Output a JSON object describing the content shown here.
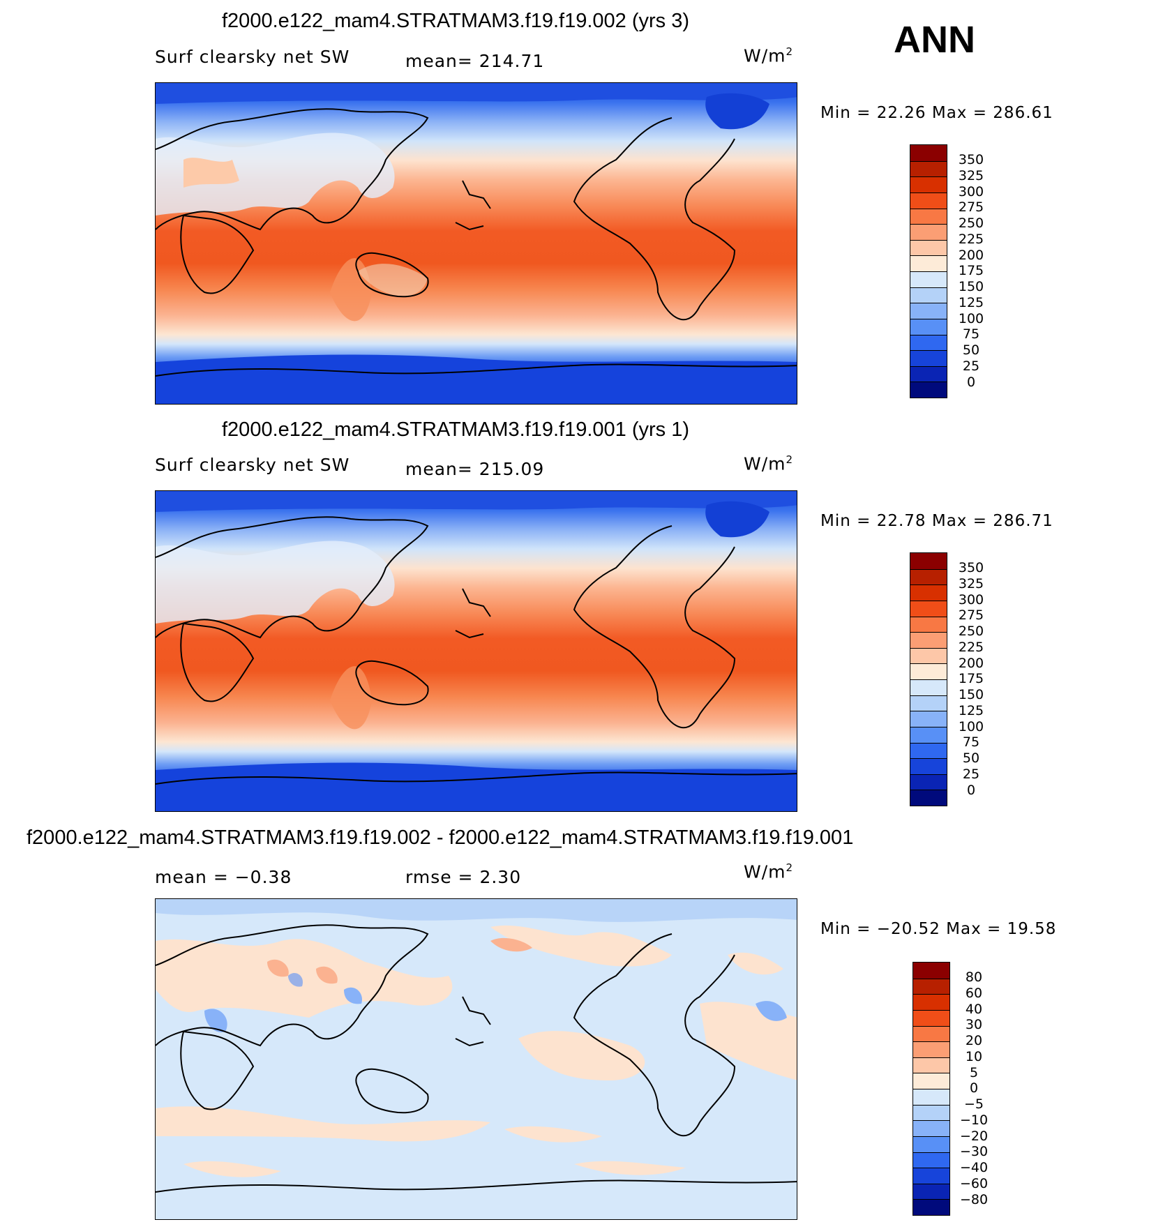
{
  "season_label": "ANN",
  "units_base": "W/m",
  "units_exp": "2",
  "panels": [
    {
      "title": "f2000.e122_mam4.STRATMAM3.f19.f19.002 (yrs 3)",
      "variable": "Surf clearsky net SW",
      "stat1": "mean= 214.71",
      "stat2": "",
      "minmax": "Min =   22.26 Max  = 286.61",
      "colorbar": {
        "labels": [
          "350",
          "325",
          "300",
          "275",
          "250",
          "225",
          "200",
          "175",
          "150",
          "125",
          "100",
          "75",
          "50",
          "25",
          "0"
        ],
        "colors": [
          "#8b0000",
          "#b72000",
          "#d83000",
          "#f04e18",
          "#f87844",
          "#fb9e74",
          "#fdc7a8",
          "#fdebd8",
          "#d6e8fa",
          "#b4d2f8",
          "#88b2f8",
          "#5890f6",
          "#2f68f0",
          "#1744da",
          "#0a24b4",
          "#000a7c"
        ]
      }
    },
    {
      "title": "f2000.e122_mam4.STRATMAM3.f19.f19.001 (yrs 1)",
      "variable": "Surf clearsky net SW",
      "stat1": "mean= 215.09",
      "stat2": "",
      "minmax": "Min =   22.78 Max  = 286.71",
      "colorbar": {
        "labels": [
          "350",
          "325",
          "300",
          "275",
          "250",
          "225",
          "200",
          "175",
          "150",
          "125",
          "100",
          "75",
          "50",
          "25",
          "0"
        ],
        "colors": [
          "#8b0000",
          "#b72000",
          "#d83000",
          "#f04e18",
          "#f87844",
          "#fb9e74",
          "#fdc7a8",
          "#fdebd8",
          "#d6e8fa",
          "#b4d2f8",
          "#88b2f8",
          "#5890f6",
          "#2f68f0",
          "#1744da",
          "#0a24b4",
          "#000a7c"
        ]
      }
    },
    {
      "title": "f2000.e122_mam4.STRATMAM3.f19.f19.002 - f2000.e122_mam4.STRATMAM3.f19.f19.001",
      "variable": "mean =   −0.38",
      "stat1": "rmse =    2.30",
      "stat2": "",
      "minmax": "Min = −20.52 Max  =   19.58",
      "colorbar": {
        "labels": [
          "80",
          "60",
          "40",
          "30",
          "20",
          "10",
          "5",
          "0",
          "−5",
          "−10",
          "−20",
          "−30",
          "−40",
          "−60",
          "−80"
        ],
        "colors": [
          "#8b0000",
          "#b72000",
          "#d83000",
          "#f04e18",
          "#f87844",
          "#fb9e74",
          "#fdc7a8",
          "#fdebd8",
          "#d6e8fa",
          "#b4d2f8",
          "#88b2f8",
          "#5890f6",
          "#2f68f0",
          "#1744da",
          "#0a24b4",
          "#000a7c"
        ]
      }
    }
  ]
}
